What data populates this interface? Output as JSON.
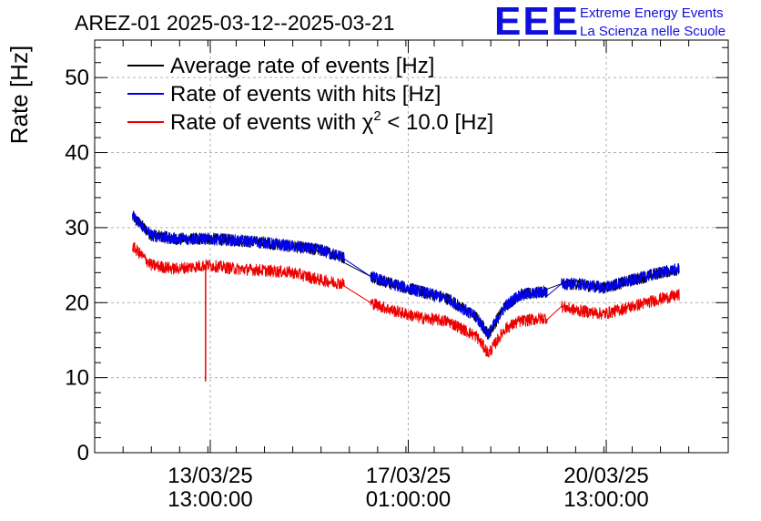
{
  "chart_data": {
    "type": "line",
    "title": "AREZ-01 2025-03-12--2025-03-21",
    "ylabel": "Rate [Hz]",
    "ylim": [
      0,
      55
    ],
    "yticks": [
      0,
      10,
      20,
      30,
      40,
      50
    ],
    "x_tick_labels": [
      {
        "line1": "13/03/25",
        "line2": "13:00:00"
      },
      {
        "line1": "17/03/25",
        "line2": "01:00:00"
      },
      {
        "line1": "20/03/25",
        "line2": "13:00:00"
      }
    ],
    "grid": true,
    "legend_position": "top-left",
    "logo": {
      "mark": "EEE",
      "line1": "Extreme Energy Events",
      "line2": "La Scienza nelle Scuole",
      "color": "#1010dd"
    },
    "series": [
      {
        "name": "Average rate of events [Hz]",
        "color": "#000000",
        "noise": 0.8,
        "values": [
          [
            "12/03/25 04:00",
            31.5
          ],
          [
            "12/03/25 12:00",
            29.0
          ],
          [
            "12/03/25 22:00",
            28.5
          ],
          [
            "13/03/25 12:00",
            28.5
          ],
          [
            "14/03/25 00:00",
            28.3
          ],
          [
            "14/03/25 12:00",
            28.0
          ],
          [
            "15/03/25 00:00",
            27.5
          ],
          [
            "15/03/25 12:00",
            27.0
          ],
          [
            "15/03/25 22:00",
            26.0
          ],
          [
            "16/03/25 09:00",
            23.5
          ],
          [
            "16/03/25 18:00",
            22.5
          ],
          [
            "17/03/25 06:00",
            21.5
          ],
          [
            "17/03/25 18:00",
            20.5
          ],
          [
            "18/03/25 06:00",
            18.0
          ],
          [
            "18/03/25 11:00",
            15.8
          ],
          [
            "18/03/25 18:00",
            19.5
          ],
          [
            "19/03/25 00:00",
            21.0
          ],
          [
            "19/03/25 12:00",
            21.5
          ],
          [
            "19/03/25 18:00",
            22.5
          ],
          [
            "20/03/25 00:00",
            22.5
          ],
          [
            "20/03/25 12:00",
            22.0
          ],
          [
            "21/03/25 00:00",
            23.0
          ],
          [
            "21/03/25 12:00",
            24.0
          ],
          [
            "21/03/25 20:00",
            24.5
          ]
        ]
      },
      {
        "name": "Rate of events with hits [Hz]",
        "color": "#0000ee",
        "noise": 0.8,
        "values": [
          [
            "12/03/25 04:00",
            31.5
          ],
          [
            "12/03/25 12:00",
            29.0
          ],
          [
            "12/03/25 22:00",
            28.5
          ],
          [
            "13/03/25 12:00",
            28.5
          ],
          [
            "14/03/25 00:00",
            28.3
          ],
          [
            "14/03/25 12:00",
            28.0
          ],
          [
            "15/03/25 00:00",
            27.5
          ],
          [
            "15/03/25 12:00",
            27.0
          ],
          [
            "15/03/25 22:00",
            26.0
          ],
          [
            "16/03/25 09:00",
            23.5
          ],
          [
            "16/03/25 18:00",
            22.5
          ],
          [
            "17/03/25 06:00",
            21.5
          ],
          [
            "17/03/25 18:00",
            20.5
          ],
          [
            "18/03/25 06:00",
            18.0
          ],
          [
            "18/03/25 11:00",
            15.8
          ],
          [
            "18/03/25 18:00",
            19.5
          ],
          [
            "19/03/25 00:00",
            21.0
          ],
          [
            "19/03/25 12:00",
            21.5
          ],
          [
            "19/03/25 18:00",
            22.5
          ],
          [
            "20/03/25 00:00",
            22.5
          ],
          [
            "20/03/25 12:00",
            22.0
          ],
          [
            "21/03/25 00:00",
            23.0
          ],
          [
            "21/03/25 12:00",
            24.0
          ],
          [
            "21/03/25 20:00",
            24.5
          ]
        ]
      },
      {
        "name": "Rate of events with χ² < 10.0 [Hz]",
        "color": "#ee0000",
        "noise": 0.8,
        "values": [
          [
            "12/03/25 04:00",
            27.5
          ],
          [
            "12/03/25 12:00",
            25.0
          ],
          [
            "12/03/25 22:00",
            24.5
          ],
          [
            "13/03/25 12:00",
            25.0
          ],
          [
            "14/03/25 00:00",
            24.5
          ],
          [
            "14/03/25 12:00",
            24.3
          ],
          [
            "15/03/25 00:00",
            24.0
          ],
          [
            "15/03/25 12:00",
            23.0
          ],
          [
            "15/03/25 22:00",
            22.5
          ],
          [
            "16/03/25 09:00",
            20.0
          ],
          [
            "16/03/25 18:00",
            19.0
          ],
          [
            "17/03/25 06:00",
            18.0
          ],
          [
            "17/03/25 18:00",
            17.5
          ],
          [
            "18/03/25 06:00",
            15.5
          ],
          [
            "18/03/25 11:00",
            13.2
          ],
          [
            "18/03/25 18:00",
            16.5
          ],
          [
            "19/03/25 00:00",
            17.5
          ],
          [
            "19/03/25 12:00",
            18.0
          ],
          [
            "19/03/25 18:00",
            19.5
          ],
          [
            "20/03/25 00:00",
            19.0
          ],
          [
            "20/03/25 12:00",
            18.5
          ],
          [
            "21/03/25 00:00",
            19.5
          ],
          [
            "21/03/25 12:00",
            20.5
          ],
          [
            "21/03/25 20:00",
            21.0
          ]
        ],
        "spike": {
          "x": "13/03/25 11:00",
          "value": 9.5
        }
      }
    ]
  }
}
